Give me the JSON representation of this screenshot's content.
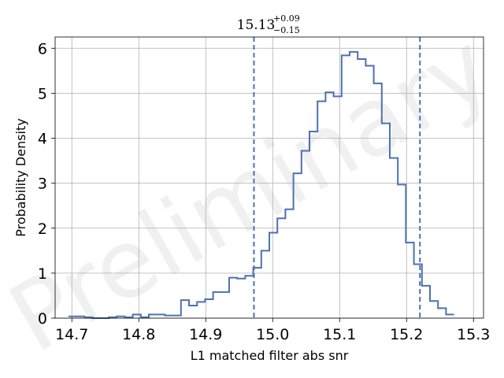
{
  "chart_data": {
    "type": "histogram",
    "title": {
      "value": "15.13",
      "upper": "+0.09",
      "lower": "−0.15"
    },
    "xlabel": "L1 matched filter abs snr",
    "ylabel": "Probability Density",
    "xlim": [
      14.675,
      15.315
    ],
    "ylim": [
      0,
      6.25
    ],
    "xticks": [
      "14.7",
      "14.8",
      "14.9",
      "15.0",
      "15.1",
      "15.2",
      "15.3"
    ],
    "xtick_values": [
      14.7,
      14.8,
      14.9,
      15.0,
      15.1,
      15.2,
      15.3
    ],
    "yticks": [
      "0",
      "1",
      "2",
      "3",
      "4",
      "5",
      "6"
    ],
    "ytick_values": [
      0,
      1,
      2,
      3,
      4,
      5,
      6
    ],
    "grid": true,
    "watermark": "Preliminary",
    "line_color": "#4c72b0",
    "bin_start": 14.695,
    "bin_width": 0.012,
    "densities": [
      0.04,
      0.04,
      0.02,
      0.0,
      0.0,
      0.02,
      0.04,
      0.02,
      0.08,
      0.02,
      0.08,
      0.08,
      0.06,
      0.06,
      0.4,
      0.28,
      0.36,
      0.42,
      0.58,
      0.58,
      0.9,
      0.88,
      0.94,
      1.12,
      1.5,
      1.9,
      2.22,
      2.42,
      3.22,
      3.72,
      4.15,
      4.82,
      5.02,
      4.93,
      5.84,
      5.92,
      5.76,
      5.61,
      5.22,
      4.33,
      3.56,
      2.97,
      1.68,
      1.2,
      0.72,
      0.38,
      0.22,
      0.08
    ],
    "interval_lines": [
      14.972,
      15.22
    ],
    "interval_line_style": "dashed"
  }
}
